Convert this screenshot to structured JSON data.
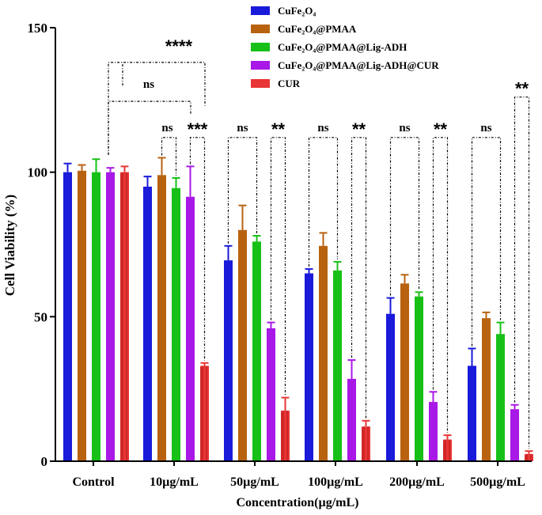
{
  "chart_data": {
    "type": "bar",
    "title": "",
    "xlabel": "Concentration(µg/mL)",
    "ylabel": "Cell Viability (%)",
    "ylim": [
      0,
      150
    ],
    "yticks": [
      "0",
      "50",
      "100",
      "150"
    ],
    "categories": [
      "Control",
      "10µg/mL",
      "50µg/mL",
      "100µg/mL",
      "200µg/mL",
      "500µg/mL"
    ],
    "legend_position": "top-right",
    "series": [
      {
        "name": "CuFe₂O₄",
        "color": "#1a1adb",
        "values": [
          100,
          95,
          69.5,
          65,
          51,
          33
        ],
        "errors": [
          3,
          3.5,
          5,
          1.5,
          5.5,
          6
        ]
      },
      {
        "name": "CuFe₂O₄@PMAA",
        "color": "#b8620f",
        "values": [
          100.5,
          99,
          80,
          74.5,
          61.5,
          49.5
        ],
        "errors": [
          2,
          6,
          8.5,
          4.5,
          3,
          2
        ]
      },
      {
        "name": "CuFe₂O₄@PMAA@Lig-ADH",
        "color": "#17c017",
        "values": [
          100,
          94.5,
          76,
          66,
          57,
          44
        ],
        "errors": [
          4.5,
          3.5,
          2,
          3,
          1.5,
          4
        ]
      },
      {
        "name": "CuFe₂O₄@PMAA@Lig-ADH@CUR",
        "color": "#a818e6",
        "values": [
          100,
          91.5,
          46,
          28.5,
          20.5,
          18
        ],
        "errors": [
          1.5,
          10.5,
          2,
          6.5,
          3.5,
          1.5
        ]
      },
      {
        "name": "CUR",
        "color": "#e83535",
        "values": [
          100,
          33,
          17.5,
          12,
          7.5,
          2.5
        ],
        "errors": [
          2,
          1,
          4.5,
          2,
          1.5,
          1
        ]
      }
    ],
    "annotations": [
      {
        "text": "****",
        "from": "Control",
        "to": "10µg/mL CUR"
      },
      {
        "text": "ns",
        "from": "Control",
        "to": "10µg/mL CuFe₂O₄@PMAA@Lig-ADH@CUR"
      },
      {
        "text": "ns",
        "group": "10µg/mL"
      },
      {
        "text": "***",
        "group": "10µg/mL"
      },
      {
        "text": "ns",
        "group": "50µg/mL"
      },
      {
        "text": "**",
        "group": "50µg/mL"
      },
      {
        "text": "ns",
        "group": "100µg/mL"
      },
      {
        "text": "**",
        "group": "100µg/mL"
      },
      {
        "text": "ns",
        "group": "200µg/mL"
      },
      {
        "text": "**",
        "group": "200µg/mL"
      },
      {
        "text": "ns",
        "group": "500µg/mL"
      },
      {
        "text": "**",
        "group": "500µg/mL"
      }
    ]
  }
}
